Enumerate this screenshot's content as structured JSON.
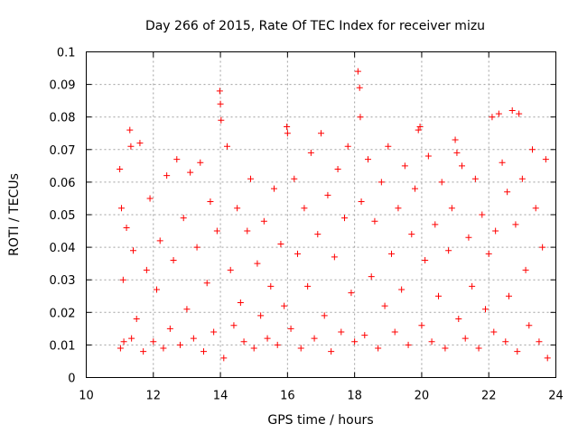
{
  "chart_data": {
    "type": "scatter",
    "title": "Day 266 of 2015, Rate Of TEC Index for receiver mizu",
    "xlabel": "GPS time / hours",
    "ylabel": "ROTI / TECUs",
    "xlim": [
      10,
      24
    ],
    "ylim": [
      0,
      0.1
    ],
    "xticks": [
      10,
      12,
      14,
      16,
      18,
      20,
      22,
      24
    ],
    "xtick_labels": [
      "10",
      "12",
      "14",
      "16",
      "18",
      "20",
      "22",
      "24"
    ],
    "yticks": [
      0,
      0.01,
      0.02,
      0.03,
      0.04,
      0.05,
      0.06,
      0.07,
      0.08,
      0.09,
      0.1
    ],
    "ytick_labels": [
      "0",
      "0.01",
      "0.02",
      "0.03",
      "0.04",
      "0.05",
      "0.06",
      "0.07",
      "0.08",
      "0.09",
      "0.1"
    ],
    "grid": true,
    "marker": "plus",
    "marker_color": "#ff0000",
    "series": [
      {
        "name": "ROTI",
        "x": [
          11.0,
          11.02,
          11.05,
          11.1,
          11.12,
          11.2,
          11.3,
          11.33,
          11.35,
          11.4,
          11.5,
          11.6,
          11.7,
          11.8,
          11.9,
          12.0,
          12.1,
          12.2,
          12.3,
          12.4,
          12.5,
          12.6,
          12.7,
          12.8,
          12.9,
          13.0,
          13.1,
          13.2,
          13.3,
          13.4,
          13.5,
          13.6,
          13.7,
          13.8,
          13.9,
          13.98,
          14.0,
          14.02,
          14.1,
          14.2,
          14.3,
          14.4,
          14.5,
          14.6,
          14.7,
          14.8,
          14.9,
          15.0,
          15.1,
          15.2,
          15.3,
          15.4,
          15.5,
          15.6,
          15.7,
          15.8,
          15.9,
          15.98,
          16.0,
          16.1,
          16.2,
          16.3,
          16.4,
          16.5,
          16.6,
          16.7,
          16.8,
          16.9,
          17.0,
          17.1,
          17.2,
          17.3,
          17.4,
          17.5,
          17.6,
          17.7,
          17.8,
          17.9,
          18.0,
          18.1,
          18.15,
          18.17,
          18.2,
          18.3,
          18.4,
          18.5,
          18.6,
          18.7,
          18.8,
          18.9,
          19.0,
          19.1,
          19.2,
          19.3,
          19.4,
          19.5,
          19.6,
          19.7,
          19.8,
          19.9,
          19.95,
          20.0,
          20.1,
          20.2,
          20.3,
          20.4,
          20.5,
          20.6,
          20.7,
          20.8,
          20.9,
          21.0,
          21.05,
          21.1,
          21.2,
          21.3,
          21.4,
          21.5,
          21.6,
          21.7,
          21.8,
          21.9,
          22.0,
          22.1,
          22.15,
          22.2,
          22.3,
          22.4,
          22.5,
          22.55,
          22.6,
          22.7,
          22.8,
          22.85,
          22.9,
          23.0,
          23.1,
          23.2,
          23.3,
          23.4,
          23.5,
          23.6,
          23.7,
          23.75
        ],
        "y": [
          0.064,
          0.009,
          0.052,
          0.03,
          0.011,
          0.046,
          0.076,
          0.071,
          0.012,
          0.039,
          0.018,
          0.072,
          0.008,
          0.033,
          0.055,
          0.011,
          0.027,
          0.042,
          0.009,
          0.062,
          0.015,
          0.036,
          0.067,
          0.01,
          0.049,
          0.021,
          0.063,
          0.012,
          0.04,
          0.066,
          0.008,
          0.029,
          0.054,
          0.014,
          0.045,
          0.088,
          0.084,
          0.079,
          0.006,
          0.071,
          0.033,
          0.016,
          0.052,
          0.023,
          0.011,
          0.045,
          0.061,
          0.009,
          0.035,
          0.019,
          0.048,
          0.012,
          0.028,
          0.058,
          0.01,
          0.041,
          0.022,
          0.077,
          0.075,
          0.015,
          0.061,
          0.038,
          0.009,
          0.052,
          0.028,
          0.069,
          0.012,
          0.044,
          0.075,
          0.019,
          0.056,
          0.008,
          0.037,
          0.064,
          0.014,
          0.049,
          0.071,
          0.026,
          0.011,
          0.094,
          0.089,
          0.08,
          0.054,
          0.013,
          0.067,
          0.031,
          0.048,
          0.009,
          0.06,
          0.022,
          0.071,
          0.038,
          0.014,
          0.052,
          0.027,
          0.065,
          0.01,
          0.044,
          0.058,
          0.076,
          0.077,
          0.016,
          0.036,
          0.068,
          0.011,
          0.047,
          0.025,
          0.06,
          0.009,
          0.039,
          0.052,
          0.073,
          0.069,
          0.018,
          0.065,
          0.012,
          0.043,
          0.028,
          0.061,
          0.009,
          0.05,
          0.021,
          0.038,
          0.08,
          0.014,
          0.045,
          0.081,
          0.066,
          0.011,
          0.057,
          0.025,
          0.082,
          0.047,
          0.008,
          0.081,
          0.061,
          0.033,
          0.016,
          0.07,
          0.052,
          0.011,
          0.04,
          0.067,
          0.006
        ]
      }
    ]
  }
}
